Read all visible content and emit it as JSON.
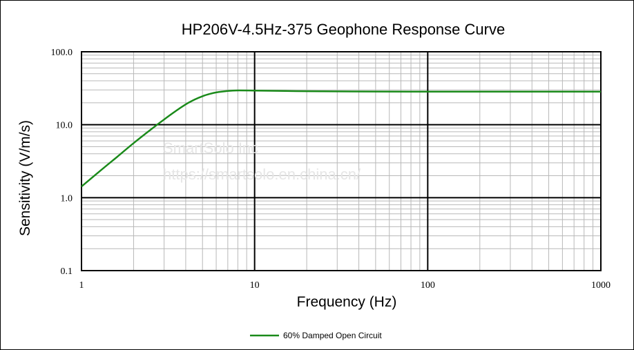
{
  "chart_data": {
    "type": "line",
    "title": "HP206V-4.5Hz-375 Geophone Response Curve",
    "xlabel": "Frequency (Hz)",
    "ylabel": "Sensitivity (V/m/s)",
    "xscale": "log",
    "yscale": "log",
    "xlim": [
      1,
      1000
    ],
    "ylim": [
      0.1,
      100
    ],
    "x_ticks": [
      "1",
      "10",
      "100",
      "1000"
    ],
    "y_ticks": [
      "100.0",
      "10.0",
      "1.0",
      "0.1"
    ],
    "grid": true,
    "legend_position": "bottom-center",
    "series": [
      {
        "name": "60% Damped Open Circuit",
        "color": "#1a8a1a",
        "x": [
          1,
          1.3,
          1.6,
          2,
          2.5,
          3,
          3.5,
          4,
          4.5,
          5,
          5.5,
          6,
          7,
          8,
          10,
          15,
          20,
          30,
          50,
          100,
          200,
          500,
          1000
        ],
        "y": [
          1.42,
          2.4,
          3.6,
          5.6,
          8.5,
          11.8,
          15.4,
          19.0,
          22.1,
          24.6,
          26.4,
          27.7,
          29.0,
          29.5,
          29.4,
          29.0,
          28.8,
          28.6,
          28.5,
          28.4,
          28.4,
          28.4,
          28.4
        ]
      }
    ],
    "watermark": [
      "SmartSolo Inc",
      "https://smartsolo.en.china.cn/"
    ]
  }
}
